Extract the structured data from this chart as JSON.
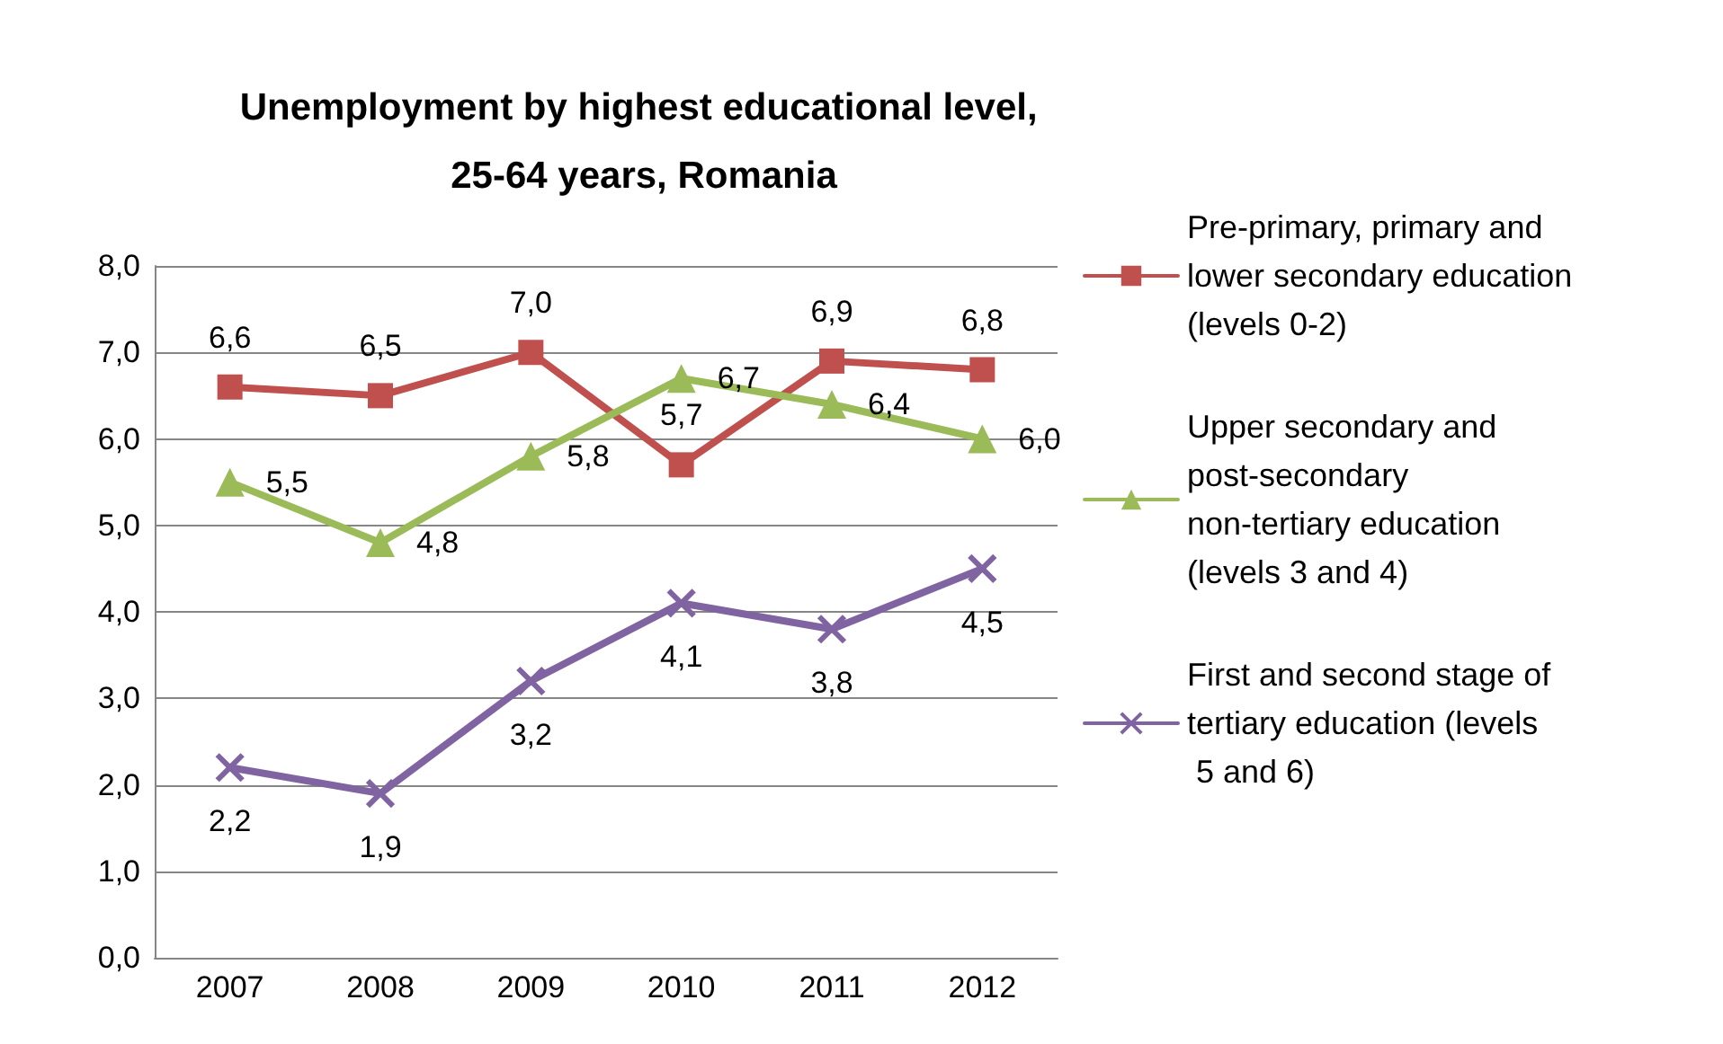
{
  "chart_data": {
    "type": "line",
    "title": "Unemployment by highest educational level, 25-64 years, Romania",
    "categories": [
      "2007",
      "2008",
      "2009",
      "2010",
      "2011",
      "2012"
    ],
    "series": [
      {
        "name": "Pre-primary, primary and lower secondary education (levels 0-2)",
        "color": "#c0504d",
        "marker": "square",
        "values": [
          6.6,
          6.5,
          7.0,
          5.7,
          6.9,
          6.8
        ],
        "value_labels": [
          "6,6",
          "6,5",
          "7,0",
          "5,7",
          "6,9",
          "6,8"
        ]
      },
      {
        "name": "Upper secondary and post-secondary non-tertiary education (levels 3 and 4)",
        "color": "#9bbb59",
        "marker": "triangle",
        "values": [
          5.5,
          4.8,
          5.8,
          6.7,
          6.4,
          6.0
        ],
        "value_labels": [
          "5,5",
          "4,8",
          "5,8",
          "6,7",
          "6,4",
          "6,0"
        ]
      },
      {
        "name": "First and second stage of tertiary education (levels 5 and 6)",
        "color": "#8064a2",
        "marker": "cross",
        "values": [
          2.2,
          1.9,
          3.2,
          4.1,
          3.8,
          4.5
        ],
        "value_labels": [
          "2,2",
          "1,9",
          "3,2",
          "4,1",
          "3,8",
          "4,5"
        ]
      }
    ],
    "ylim": [
      0,
      8
    ],
    "yticks": [
      {
        "value": 0,
        "label": "0,0"
      },
      {
        "value": 1,
        "label": "1,0"
      },
      {
        "value": 2,
        "label": "2,0"
      },
      {
        "value": 3,
        "label": "3,0"
      },
      {
        "value": 4,
        "label": "4,0"
      },
      {
        "value": 5,
        "label": "5,0"
      },
      {
        "value": 6,
        "label": "6,0"
      },
      {
        "value": 7,
        "label": "7,0"
      },
      {
        "value": 8,
        "label": "8,0"
      }
    ],
    "grid": "y",
    "legend": "right",
    "line_style": "solid"
  }
}
